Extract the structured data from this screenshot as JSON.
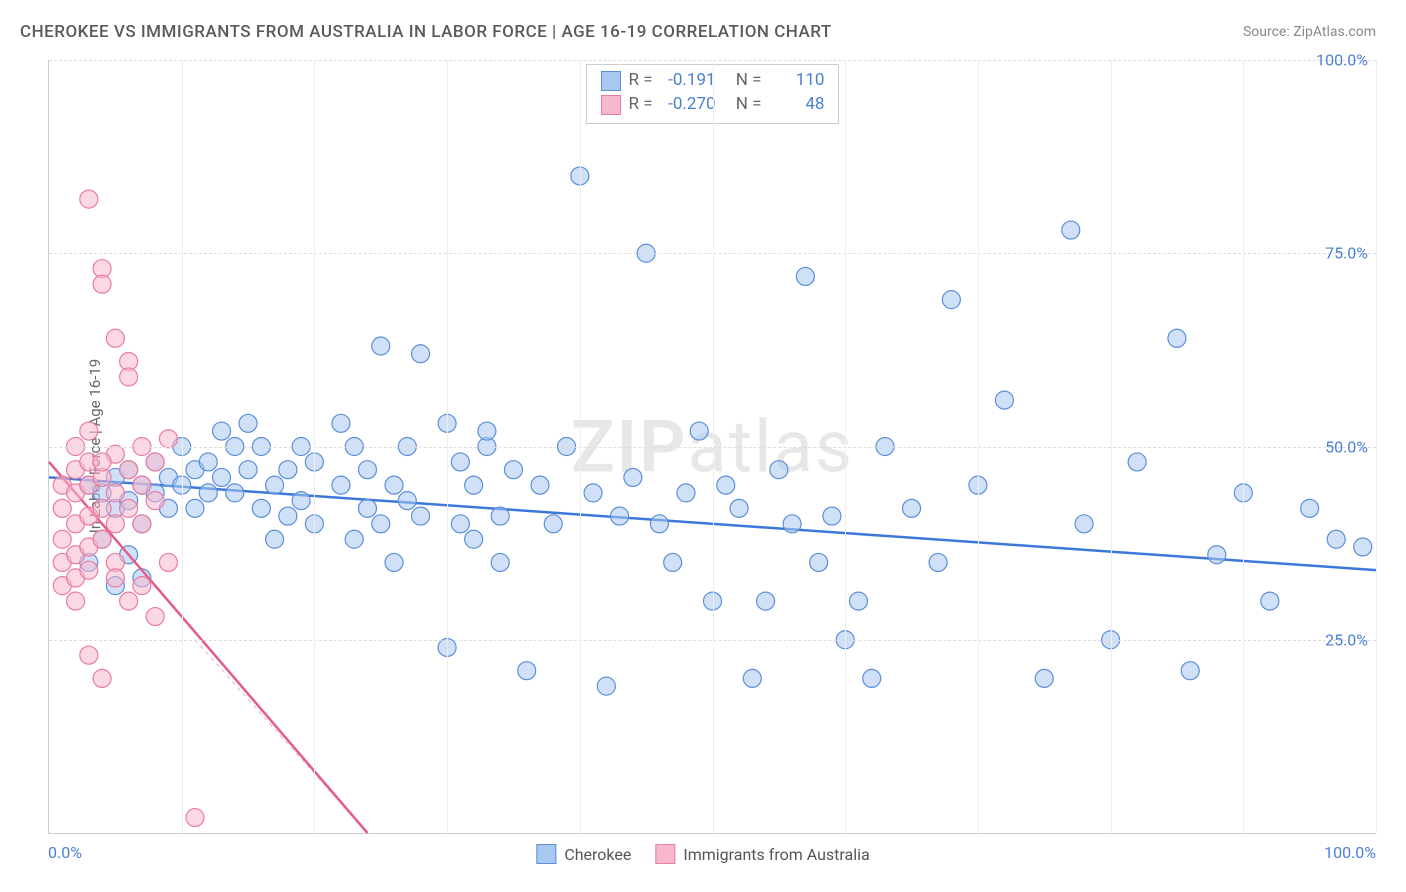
{
  "title": "CHEROKEE VS IMMIGRANTS FROM AUSTRALIA IN LABOR FORCE | AGE 16-19 CORRELATION CHART",
  "source_label": "Source: ",
  "source_name": "ZipAtlas.com",
  "y_axis_label": "In Labor Force | Age 16-19",
  "watermark": "ZIPatlas",
  "legend": {
    "series1_label": "Cherokee",
    "series2_label": "Immigrants from Australia"
  },
  "stats": {
    "series1": {
      "R_label": "R =",
      "R": "-0.191",
      "N_label": "N =",
      "N": "110"
    },
    "series2": {
      "R_label": "R =",
      "R": "-0.270",
      "N_label": "N =",
      "N": "48"
    }
  },
  "axes": {
    "x_min_label": "0.0%",
    "x_max_label": "100.0%",
    "y_ticks": [
      {
        "pct": 25,
        "label": "25.0%"
      },
      {
        "pct": 50,
        "label": "50.0%"
      },
      {
        "pct": 75,
        "label": "75.0%"
      },
      {
        "pct": 100,
        "label": "100.0%"
      }
    ],
    "x_grid_steps": [
      0,
      10,
      20,
      30,
      40,
      50,
      60,
      70,
      80,
      90,
      100
    ],
    "xlim": [
      0,
      100
    ],
    "ylim": [
      0,
      100
    ]
  },
  "chart": {
    "type": "scatter",
    "background_color": "#ffffff",
    "grid_color": "#dddddd",
    "marker_radius": 9,
    "marker_stroke_width": 1.2,
    "line_width": 2.5,
    "series": [
      {
        "name": "Cherokee",
        "fill": "#a9c8f0",
        "fill_opacity": 0.55,
        "stroke": "#5b8fd9",
        "line_color": "#3b78d8",
        "trend": {
          "x1": 0,
          "y1": 46,
          "x2": 100,
          "y2": 34
        },
        "points": [
          [
            3,
            45
          ],
          [
            4,
            44
          ],
          [
            5,
            46
          ],
          [
            5,
            42
          ],
          [
            6,
            47
          ],
          [
            6,
            43
          ],
          [
            7,
            45
          ],
          [
            7,
            40
          ],
          [
            8,
            48
          ],
          [
            8,
            44
          ],
          [
            9,
            46
          ],
          [
            9,
            42
          ],
          [
            10,
            50
          ],
          [
            10,
            45
          ],
          [
            11,
            47
          ],
          [
            11,
            42
          ],
          [
            12,
            48
          ],
          [
            12,
            44
          ],
          [
            13,
            52
          ],
          [
            13,
            46
          ],
          [
            14,
            50
          ],
          [
            14,
            44
          ],
          [
            15,
            53
          ],
          [
            15,
            47
          ],
          [
            16,
            50
          ],
          [
            16,
            42
          ],
          [
            17,
            45
          ],
          [
            17,
            38
          ],
          [
            18,
            41
          ],
          [
            18,
            47
          ],
          [
            19,
            50
          ],
          [
            19,
            43
          ],
          [
            20,
            48
          ],
          [
            20,
            40
          ],
          [
            22,
            53
          ],
          [
            22,
            45
          ],
          [
            23,
            50
          ],
          [
            23,
            38
          ],
          [
            24,
            47
          ],
          [
            24,
            42
          ],
          [
            25,
            63
          ],
          [
            25,
            40
          ],
          [
            26,
            45
          ],
          [
            26,
            35
          ],
          [
            27,
            50
          ],
          [
            27,
            43
          ],
          [
            28,
            62
          ],
          [
            28,
            41
          ],
          [
            30,
            53
          ],
          [
            30,
            24
          ],
          [
            31,
            48
          ],
          [
            31,
            40
          ],
          [
            32,
            45
          ],
          [
            32,
            38
          ],
          [
            33,
            50
          ],
          [
            33,
            52
          ],
          [
            34,
            41
          ],
          [
            34,
            35
          ],
          [
            35,
            47
          ],
          [
            36,
            21
          ],
          [
            37,
            45
          ],
          [
            38,
            40
          ],
          [
            39,
            50
          ],
          [
            40,
            85
          ],
          [
            41,
            44
          ],
          [
            42,
            19
          ],
          [
            43,
            41
          ],
          [
            44,
            46
          ],
          [
            45,
            75
          ],
          [
            46,
            40
          ],
          [
            47,
            35
          ],
          [
            48,
            44
          ],
          [
            49,
            52
          ],
          [
            50,
            30
          ],
          [
            51,
            45
          ],
          [
            52,
            42
          ],
          [
            53,
            20
          ],
          [
            54,
            30
          ],
          [
            55,
            47
          ],
          [
            56,
            40
          ],
          [
            57,
            72
          ],
          [
            58,
            35
          ],
          [
            59,
            41
          ],
          [
            60,
            25
          ],
          [
            61,
            30
          ],
          [
            62,
            20
          ],
          [
            63,
            50
          ],
          [
            65,
            42
          ],
          [
            67,
            35
          ],
          [
            68,
            69
          ],
          [
            70,
            45
          ],
          [
            72,
            56
          ],
          [
            75,
            20
          ],
          [
            77,
            78
          ],
          [
            78,
            40
          ],
          [
            80,
            25
          ],
          [
            82,
            48
          ],
          [
            85,
            64
          ],
          [
            86,
            21
          ],
          [
            88,
            36
          ],
          [
            90,
            44
          ],
          [
            92,
            30
          ],
          [
            95,
            42
          ],
          [
            97,
            38
          ],
          [
            99,
            37
          ],
          [
            3,
            35
          ],
          [
            4,
            38
          ],
          [
            5,
            32
          ],
          [
            6,
            36
          ],
          [
            7,
            33
          ]
        ]
      },
      {
        "name": "Immigrants from Australia",
        "fill": "#f7b8cc",
        "fill_opacity": 0.55,
        "stroke": "#e97ca1",
        "line_color": "#e35d8a",
        "trend": {
          "x1": 0,
          "y1": 48,
          "x2": 24,
          "y2": 0
        },
        "trend_dashed_ext": {
          "x1": 11,
          "y1": 25,
          "x2": 24,
          "y2": 0
        },
        "points": [
          [
            1,
            45
          ],
          [
            1,
            42
          ],
          [
            1,
            38
          ],
          [
            1,
            35
          ],
          [
            1,
            32
          ],
          [
            2,
            47
          ],
          [
            2,
            44
          ],
          [
            2,
            40
          ],
          [
            2,
            36
          ],
          [
            2,
            33
          ],
          [
            2,
            30
          ],
          [
            3,
            48
          ],
          [
            3,
            45
          ],
          [
            3,
            41
          ],
          [
            3,
            37
          ],
          [
            3,
            34
          ],
          [
            3,
            82
          ],
          [
            4,
            46
          ],
          [
            4,
            42
          ],
          [
            4,
            38
          ],
          [
            4,
            73
          ],
          [
            4,
            71
          ],
          [
            5,
            49
          ],
          [
            5,
            44
          ],
          [
            5,
            40
          ],
          [
            5,
            35
          ],
          [
            5,
            64
          ],
          [
            6,
            47
          ],
          [
            6,
            42
          ],
          [
            6,
            61
          ],
          [
            6,
            59
          ],
          [
            7,
            50
          ],
          [
            7,
            45
          ],
          [
            7,
            40
          ],
          [
            8,
            48
          ],
          [
            8,
            43
          ],
          [
            9,
            51
          ],
          [
            9,
            35
          ],
          [
            3,
            23
          ],
          [
            4,
            20
          ],
          [
            5,
            33
          ],
          [
            6,
            30
          ],
          [
            7,
            32
          ],
          [
            8,
            28
          ],
          [
            2,
            50
          ],
          [
            3,
            52
          ],
          [
            11,
            2
          ],
          [
            4,
            48
          ]
        ]
      }
    ]
  }
}
